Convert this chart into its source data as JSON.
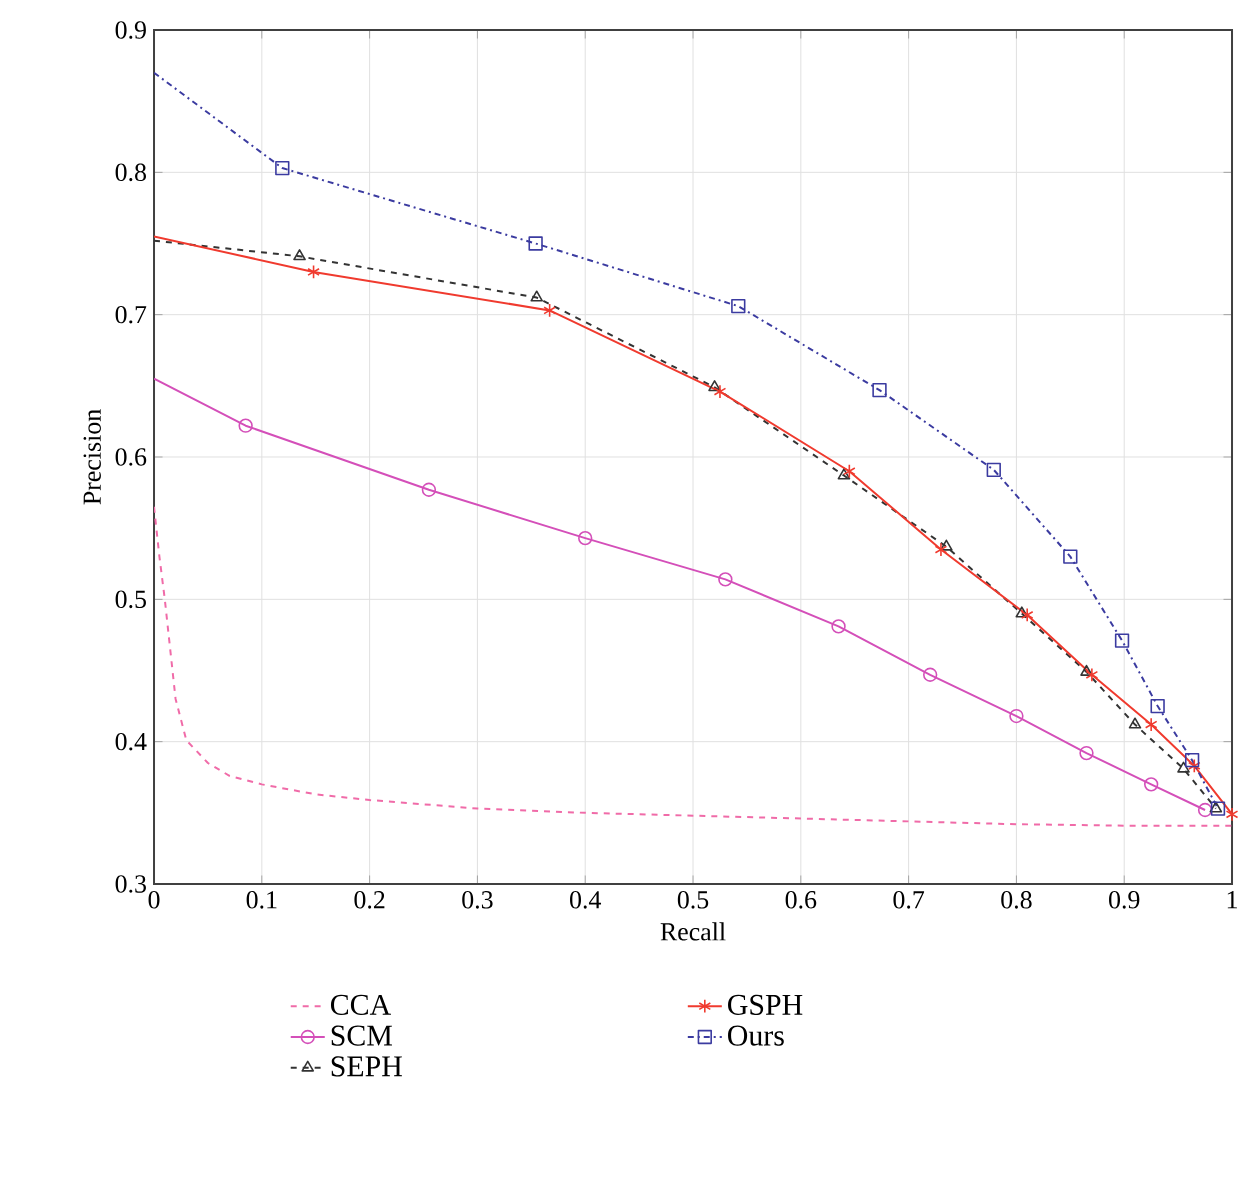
{
  "chart_data": {
    "type": "line",
    "xlabel": "Recall",
    "ylabel": "Precision",
    "xlim": [
      0,
      1
    ],
    "ylim": [
      0.3,
      0.9
    ],
    "xticks": [
      0,
      0.1,
      0.2,
      0.3,
      0.4,
      0.5,
      0.6,
      0.7,
      0.8,
      0.9,
      1
    ],
    "yticks": [
      0.3,
      0.4,
      0.5,
      0.6,
      0.7,
      0.8,
      0.9
    ],
    "grid": true,
    "legend": "bottom",
    "series": [
      {
        "name": "CCA",
        "color": "#f06ba8",
        "line_style": "dashed",
        "marker": "none",
        "x": [
          0,
          0.005,
          0.01,
          0.02,
          0.03,
          0.05,
          0.07,
          0.1,
          0.15,
          0.2,
          0.3,
          0.4,
          0.5,
          0.6,
          0.7,
          0.8,
          0.9,
          1
        ],
        "values": [
          0.565,
          0.53,
          0.5,
          0.43,
          0.401,
          0.385,
          0.376,
          0.37,
          0.363,
          0.359,
          0.353,
          0.35,
          0.348,
          0.346,
          0.344,
          0.342,
          0.341,
          0.341
        ]
      },
      {
        "name": "SCM",
        "color": "#d44fb9",
        "line_style": "solid",
        "marker": "circle",
        "x": [
          0,
          0.085,
          0.255,
          0.4,
          0.53,
          0.635,
          0.72,
          0.8,
          0.865,
          0.925,
          0.975
        ],
        "values": [
          0.655,
          0.622,
          0.577,
          0.543,
          0.514,
          0.481,
          0.447,
          0.418,
          0.392,
          0.37,
          0.352
        ]
      },
      {
        "name": "SEPH",
        "color": "#333333",
        "line_style": "dashed",
        "marker": "triangle",
        "x": [
          0,
          0.135,
          0.355,
          0.52,
          0.64,
          0.735,
          0.805,
          0.865,
          0.91,
          0.955,
          0.985
        ],
        "values": [
          0.752,
          0.741,
          0.712,
          0.649,
          0.587,
          0.537,
          0.49,
          0.449,
          0.412,
          0.381,
          0.353
        ]
      },
      {
        "name": "GSPH",
        "color": "#f03a2e",
        "line_style": "solid",
        "marker": "cross",
        "x": [
          0,
          0.148,
          0.367,
          0.525,
          0.645,
          0.73,
          0.81,
          0.87,
          0.925,
          0.965,
          1
        ],
        "values": [
          0.755,
          0.73,
          0.703,
          0.646,
          0.59,
          0.535,
          0.489,
          0.447,
          0.412,
          0.383,
          0.349
        ]
      },
      {
        "name": "Ours",
        "color": "#3b3ba0",
        "line_style": "dashdot",
        "marker": "square",
        "x": [
          0,
          0.119,
          0.354,
          0.542,
          0.673,
          0.779,
          0.85,
          0.898,
          0.931,
          0.963,
          0.987
        ],
        "values": [
          0.87,
          0.803,
          0.75,
          0.706,
          0.647,
          0.591,
          0.53,
          0.471,
          0.425,
          0.387,
          0.353
        ]
      }
    ]
  }
}
